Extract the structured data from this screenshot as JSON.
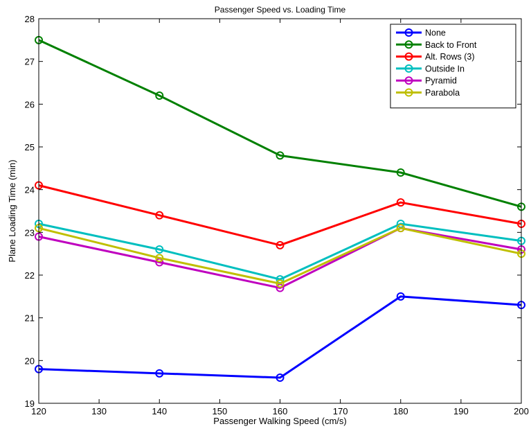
{
  "chart_data": {
    "type": "line",
    "title": "Passenger Speed vs. Loading Time",
    "xlabel": "Passenger Walking Speed (cm/s)",
    "ylabel": "Plane Loading Time (min)",
    "xlim": [
      120,
      200
    ],
    "ylim": [
      19,
      28
    ],
    "xticks": [
      120,
      130,
      140,
      150,
      160,
      170,
      180,
      190,
      200
    ],
    "yticks": [
      19,
      20,
      21,
      22,
      23,
      24,
      25,
      26,
      27,
      28
    ],
    "grid": false,
    "legend_position": "top-right",
    "x": [
      120,
      140,
      160,
      180,
      200
    ],
    "series": [
      {
        "name": "None",
        "color": "#0000ff",
        "values": [
          19.8,
          19.7,
          19.6,
          21.5,
          21.3
        ]
      },
      {
        "name": "Back to Front",
        "color": "#008000",
        "values": [
          27.5,
          26.2,
          24.8,
          24.4,
          23.6
        ]
      },
      {
        "name": "Alt. Rows (3)",
        "color": "#ff0000",
        "values": [
          24.1,
          23.4,
          22.7,
          23.7,
          23.2
        ]
      },
      {
        "name": "Outside In",
        "color": "#00bfbf",
        "values": [
          23.2,
          22.6,
          21.9,
          23.2,
          22.8
        ]
      },
      {
        "name": "Pyramid",
        "color": "#bf00bf",
        "values": [
          22.9,
          22.3,
          21.7,
          23.1,
          22.6
        ]
      },
      {
        "name": "Parabola",
        "color": "#bfbf00",
        "values": [
          23.1,
          22.4,
          21.8,
          23.1,
          22.5
        ]
      }
    ]
  }
}
